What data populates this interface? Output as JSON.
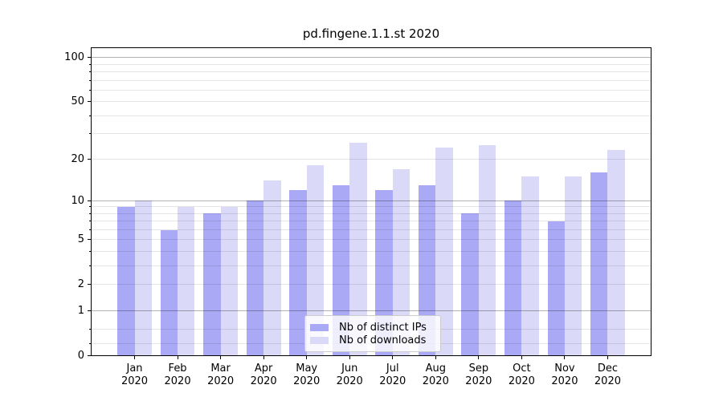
{
  "chart_data": {
    "type": "bar",
    "title": "pd.fingene.1.1.st 2020",
    "y_scale": "log1p",
    "ylim": [
      0,
      116
    ],
    "grid": true,
    "legend_position": "lower center",
    "categories": [
      "Jan",
      "Feb",
      "Mar",
      "Apr",
      "May",
      "Jun",
      "Jul",
      "Aug",
      "Sep",
      "Oct",
      "Nov",
      "Dec"
    ],
    "category_year": "2020",
    "series": [
      {
        "name": "Nb of distinct IPs",
        "color": "#a9a9f5",
        "values": [
          9,
          6,
          8,
          10,
          12,
          13,
          12,
          13,
          8,
          10,
          7,
          16
        ]
      },
      {
        "name": "Nb of downloads",
        "color": "#dadaf8",
        "values": [
          10,
          9,
          9,
          14,
          18,
          26,
          17,
          24,
          25,
          15,
          15,
          23
        ]
      }
    ],
    "y_ticks_labeled": [
      0,
      1,
      2,
      5,
      10,
      20,
      50,
      100
    ],
    "y_major_grid": [
      1,
      10,
      100
    ],
    "y_minor_grid": [
      0.2,
      0.5,
      2,
      3,
      4,
      5,
      6,
      7,
      8,
      9,
      20,
      30,
      40,
      50,
      60,
      70,
      80,
      90
    ],
    "y_minor_ticks": [
      0.2,
      0.5,
      3,
      4,
      6,
      7,
      8,
      9,
      30,
      40,
      60,
      70,
      80,
      90
    ]
  }
}
